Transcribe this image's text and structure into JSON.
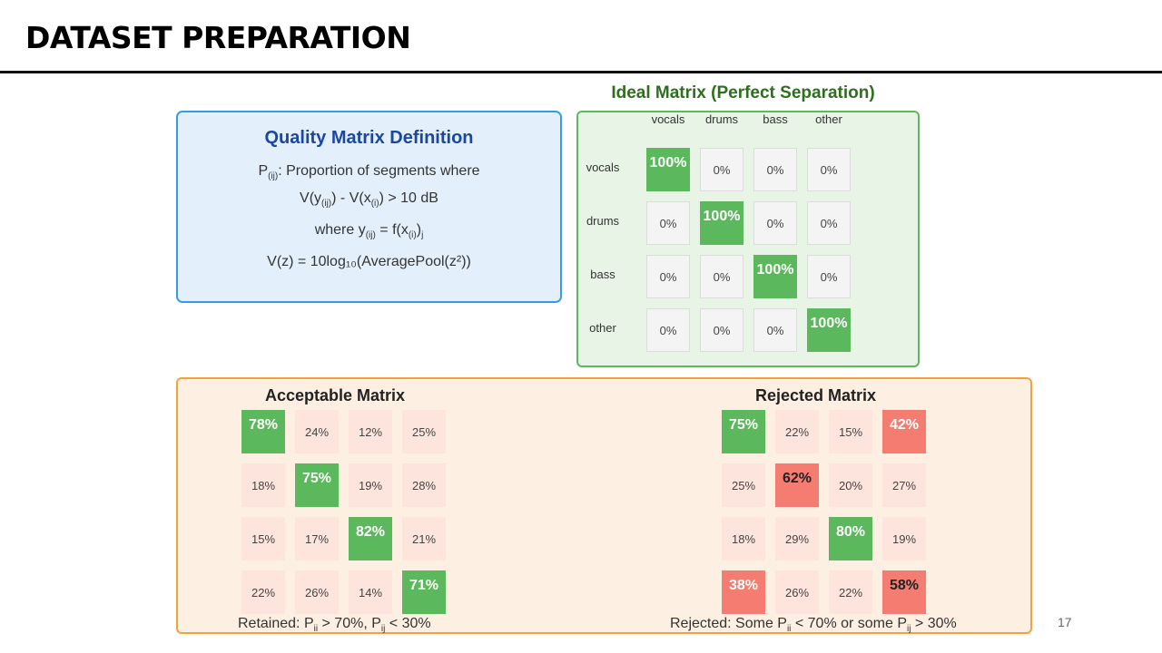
{
  "slide": {
    "title": "DATASET PREPARATION",
    "page_number": "17"
  },
  "definition": {
    "title": "Quality Matrix Definition",
    "line1_pre": "P",
    "line1_sub": "(ij)",
    "line1_post": ": Proportion of segments where",
    "line2": [
      "V(y",
      "(ij)",
      ") - V(x",
      "(i)",
      ") > 10 dB"
    ],
    "line3": [
      "where y",
      "(ij)",
      " = f(x",
      "(i)",
      ")",
      "j"
    ],
    "line4": "V(z) = 10log₁₀(AveragePool(z²))"
  },
  "ideal": {
    "title": "Ideal Matrix (Perfect Separation)",
    "columns": [
      "vocals",
      "drums",
      "bass",
      "other"
    ],
    "rows": [
      "vocals",
      "drums",
      "bass",
      "other"
    ],
    "cells": [
      [
        "100%",
        "0%",
        "0%",
        "0%"
      ],
      [
        "0%",
        "100%",
        "0%",
        "0%"
      ],
      [
        "0%",
        "0%",
        "100%",
        "0%"
      ],
      [
        "0%",
        "0%",
        "0%",
        "100%"
      ]
    ]
  },
  "acceptable": {
    "title": "Acceptable Matrix",
    "cells": [
      [
        "78%",
        "24%",
        "12%",
        "25%"
      ],
      [
        "18%",
        "75%",
        "19%",
        "28%"
      ],
      [
        "15%",
        "17%",
        "82%",
        "21%"
      ],
      [
        "22%",
        "26%",
        "14%",
        "71%"
      ]
    ],
    "caption": [
      "Retained: P",
      "ii",
      " > 70%, P",
      "ij",
      " < 30%"
    ]
  },
  "rejected": {
    "title": "Rejected Matrix",
    "cells": [
      [
        "75%",
        "22%",
        "15%",
        "42%"
      ],
      [
        "25%",
        "62%",
        "20%",
        "27%"
      ],
      [
        "18%",
        "29%",
        "80%",
        "19%"
      ],
      [
        "38%",
        "26%",
        "22%",
        "58%"
      ]
    ],
    "caption": [
      "Rejected: Some P",
      "ii",
      " < 70% or some P",
      "ij",
      " > 30%"
    ]
  },
  "colors": {
    "good": "#5cb85c",
    "bad": "#f47c70",
    "pale": "#fde4dc",
    "definition_border": "#3a9be0",
    "ideal_border": "#5cb85c",
    "bottom_border": "#f2a23a"
  }
}
